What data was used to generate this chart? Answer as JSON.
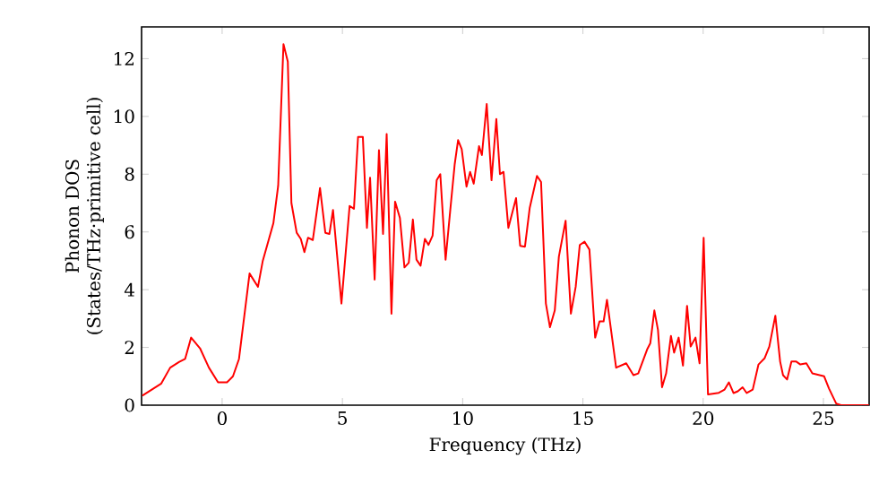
{
  "chart_data": {
    "type": "line",
    "xlabel": "Frequency (THz)",
    "ylabel": "Phonon DOS\n(States/THz·primitive cell)",
    "xlim": [
      -3.35,
      26.9
    ],
    "ylim": [
      0,
      13.1
    ],
    "xticks": [
      0,
      5,
      10,
      15,
      20,
      25
    ],
    "yticks": [
      0,
      2,
      4,
      6,
      8,
      10,
      12
    ],
    "marker": "none",
    "line_style": "solid",
    "series": [
      {
        "color": "#ff0000",
        "x": [
          -3.32,
          -2.53,
          -2.16,
          -1.78,
          -1.54,
          -1.29,
          -0.92,
          -0.55,
          -0.17,
          0.2,
          0.45,
          0.7,
          1.14,
          1.49,
          1.69,
          2.13,
          2.33,
          2.55,
          2.73,
          2.88,
          3.1,
          3.27,
          3.42,
          3.57,
          3.77,
          4.07,
          4.29,
          4.46,
          4.61,
          4.96,
          5.3,
          5.48,
          5.65,
          5.85,
          6.02,
          6.15,
          6.34,
          6.52,
          6.69,
          6.84,
          7.04,
          7.19,
          7.39,
          7.58,
          7.76,
          7.93,
          8.08,
          8.25,
          8.43,
          8.58,
          8.75,
          8.92,
          9.07,
          9.29,
          9.49,
          9.67,
          9.81,
          9.96,
          10.16,
          10.31,
          10.46,
          10.68,
          10.8,
          11.0,
          11.2,
          11.4,
          11.55,
          11.7,
          11.9,
          12.22,
          12.39,
          12.59,
          12.79,
          13.09,
          13.26,
          13.46,
          13.63,
          13.83,
          14.0,
          14.28,
          14.5,
          14.7,
          14.87,
          15.07,
          15.27,
          15.51,
          15.69,
          15.86,
          16.0,
          16.38,
          16.8,
          17.1,
          17.3,
          17.67,
          17.8,
          17.97,
          18.12,
          18.29,
          18.46,
          18.66,
          18.79,
          18.98,
          19.16,
          19.33,
          19.48,
          19.68,
          19.85,
          20.02,
          20.2,
          20.65,
          20.89,
          21.07,
          21.26,
          21.44,
          21.64,
          21.81,
          22.06,
          22.3,
          22.55,
          22.75,
          23.0,
          23.2,
          23.32,
          23.49,
          23.67,
          23.87,
          24.04,
          24.29,
          24.54,
          25.03,
          25.23,
          25.53,
          25.73,
          26.9
        ],
        "values": [
          0.33,
          0.75,
          1.3,
          1.5,
          1.6,
          2.34,
          1.97,
          1.3,
          0.79,
          0.79,
          1.0,
          1.6,
          4.56,
          4.1,
          5.0,
          6.3,
          7.6,
          12.5,
          11.9,
          7.0,
          5.97,
          5.76,
          5.3,
          5.8,
          5.72,
          7.52,
          5.97,
          5.93,
          6.76,
          3.52,
          6.9,
          6.8,
          9.29,
          9.29,
          6.14,
          7.88,
          4.35,
          8.83,
          5.93,
          9.39,
          3.17,
          7.05,
          6.49,
          4.77,
          4.93,
          6.43,
          5.04,
          4.83,
          5.76,
          5.55,
          5.87,
          7.79,
          8.0,
          5.04,
          6.8,
          8.35,
          9.18,
          8.87,
          7.57,
          8.08,
          7.67,
          8.97,
          8.66,
          10.43,
          7.79,
          9.91,
          8.0,
          8.08,
          6.14,
          7.17,
          5.52,
          5.49,
          6.84,
          7.94,
          7.73,
          3.52,
          2.7,
          3.28,
          5.14,
          6.39,
          3.17,
          4.1,
          5.55,
          5.66,
          5.39,
          2.34,
          2.9,
          2.9,
          3.65,
          1.3,
          1.45,
          1.04,
          1.1,
          1.93,
          2.14,
          3.28,
          2.61,
          0.62,
          1.1,
          2.4,
          1.82,
          2.34,
          1.37,
          3.44,
          2.03,
          2.34,
          1.45,
          5.8,
          0.37,
          0.43,
          0.54,
          0.79,
          0.42,
          0.48,
          0.62,
          0.42,
          0.54,
          1.41,
          1.62,
          2.03,
          3.1,
          1.51,
          1.04,
          0.89,
          1.51,
          1.51,
          1.41,
          1.45,
          1.1,
          1.0,
          0.58,
          0.06,
          0,
          0
        ]
      }
    ]
  }
}
